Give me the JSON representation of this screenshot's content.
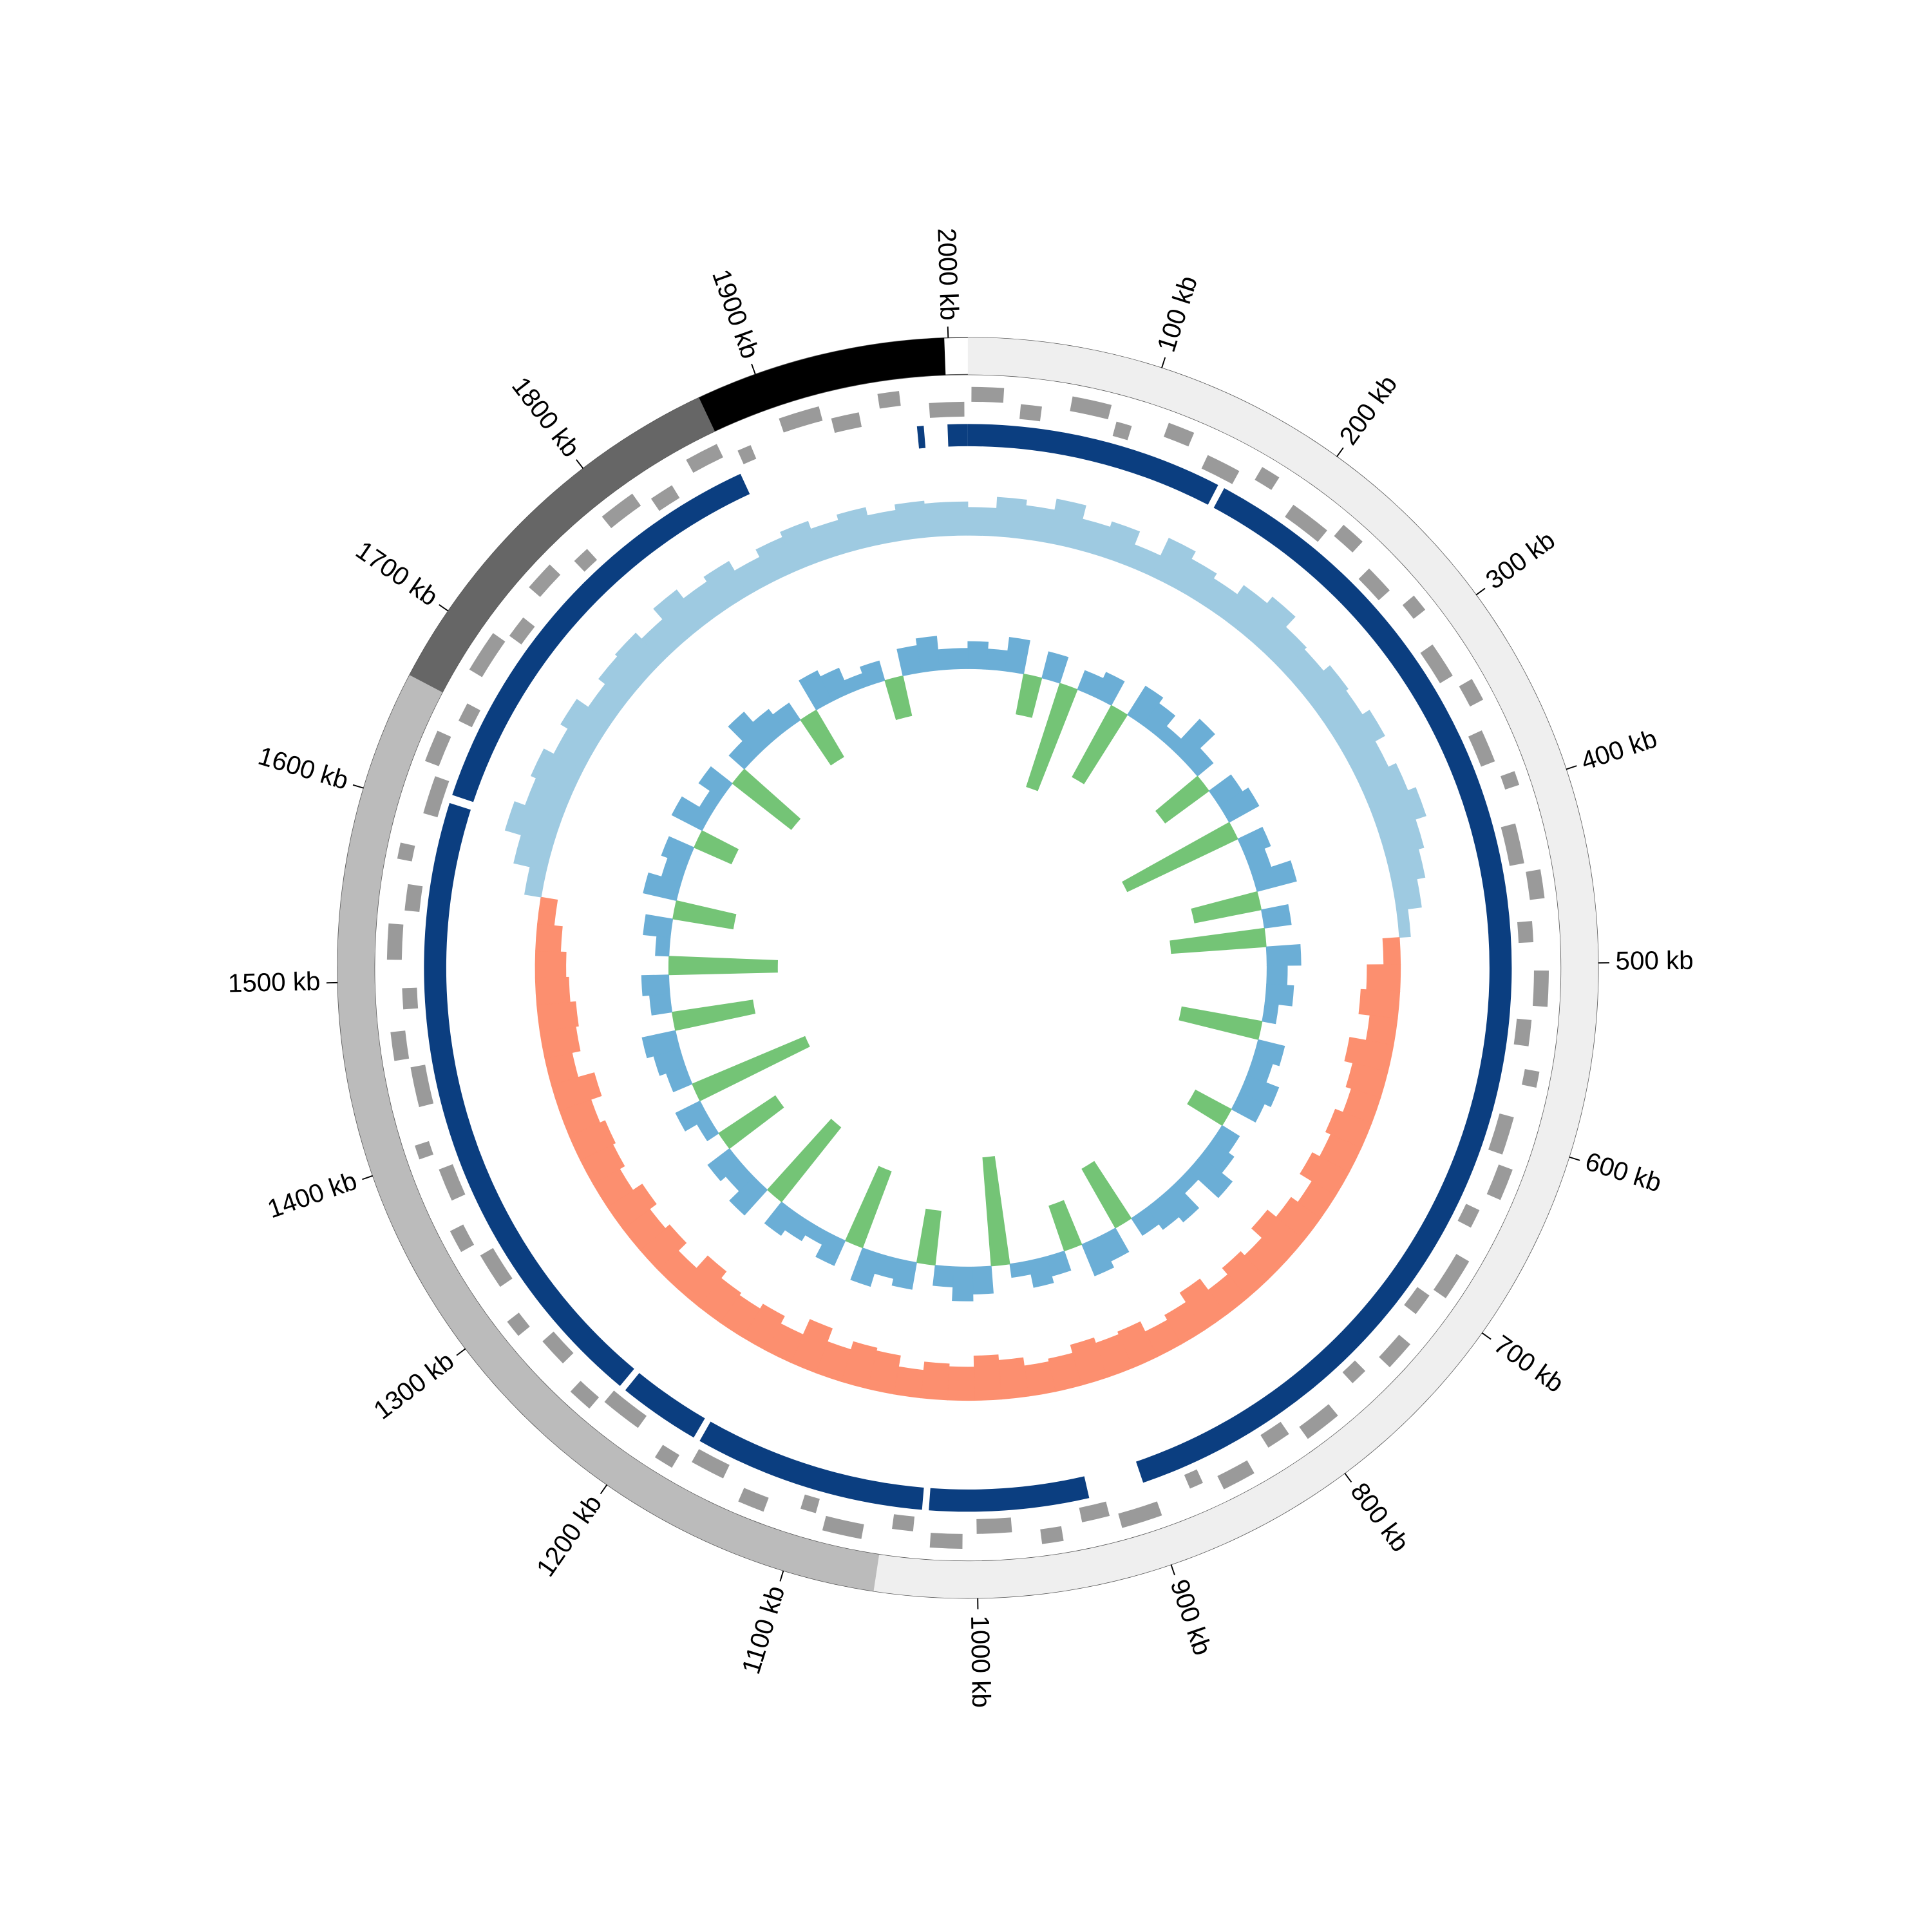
{
  "chart_data": {
    "type": "circular-genome",
    "xlim": [
      0,
      2010
    ],
    "xticks": [
      {
        "value": 100,
        "label": "100 kb"
      },
      {
        "value": 200,
        "label": "200 kb"
      },
      {
        "value": 300,
        "label": "300 kb"
      },
      {
        "value": 400,
        "label": "400 kb"
      },
      {
        "value": 500,
        "label": "500 kb"
      },
      {
        "value": 600,
        "label": "600 kb"
      },
      {
        "value": 700,
        "label": "700 kb"
      },
      {
        "value": 800,
        "label": "800 kb"
      },
      {
        "value": 900,
        "label": "900 kb"
      },
      {
        "value": 1000,
        "label": "1000 kb"
      },
      {
        "value": 1100,
        "label": "1100 kb"
      },
      {
        "value": 1200,
        "label": "1200 kb"
      },
      {
        "value": 1300,
        "label": "1300 kb"
      },
      {
        "value": 1400,
        "label": "1400 kb"
      },
      {
        "value": 1500,
        "label": "1500 kb"
      },
      {
        "value": 1600,
        "label": "1600 kb"
      },
      {
        "value": 1700,
        "label": "1700 kb"
      },
      {
        "value": 1800,
        "label": "1800 kb"
      },
      {
        "value": 1900,
        "label": "1900 kb"
      },
      {
        "value": 2000,
        "label": "2000 kb"
      }
    ],
    "segments": {
      "start": [
        0,
        1053,
        1662,
        1869
      ],
      "end": [
        1053,
        1662,
        1869,
        1998
      ],
      "color": [
        "#efefef",
        "#bbbbbb",
        "#666666",
        "#000000"
      ]
    },
    "genes": {
      "color": "#9a9a9a",
      "start": [
        2,
        30,
        58,
        85,
        113,
        140,
        170,
        196,
        225,
        252,
        280,
        308,
        336,
        364,
        392,
        420,
        448,
        476,
        504,
        532,
        560,
        588,
        616,
        644,
        672,
        700,
        728,
        756,
        784,
        812,
        840,
        868,
        896,
        924,
        952,
        980,
        1008,
        1036,
        1064,
        1092,
        1120,
        1148,
        1176,
        1204,
        1232,
        1260,
        1288,
        1316,
        1344,
        1372,
        1400,
        1428,
        1456,
        1484,
        1512,
        1540,
        1568,
        1596,
        1624,
        1652,
        1680,
        1708,
        1736,
        1764,
        1792,
        1820,
        1848,
        1876,
        1904,
        1932,
        1960,
        1988
      ],
      "end": [
        20,
        42,
        80,
        94,
        128,
        160,
        181,
        220,
        239,
        269,
        290,
        329,
        349,
        383,
        400,
        443,
        464,
        488,
        524,
        547,
        569,
        610,
        634,
        655,
        696,
        713,
        745,
        766,
        805,
        826,
        859,
        876,
        919,
        940,
        964,
        1000,
        1026,
        1048,
        1086,
        1101,
        1135,
        1168,
        1187,
        1228,
        1246,
        1277,
        1298,
        1337,
        1357,
        1391,
        1408,
        1451,
        1472,
        1496,
        1532,
        1555,
        1577,
        1618,
        1642,
        1663,
        1704,
        1721,
        1753,
        1774,
        1813,
        1834,
        1867,
        1884,
        1927,
        1948,
        1972,
        2008
      ],
      "strand": [
        1,
        -1,
        1,
        -1,
        1,
        -1,
        1,
        -1,
        1,
        -1,
        1,
        -1,
        1,
        -1,
        1,
        -1,
        1,
        -1,
        1,
        -1,
        1,
        -1,
        1,
        -1,
        1,
        -1,
        1,
        -1,
        1,
        -1,
        1,
        -1,
        1,
        -1,
        1,
        -1,
        1,
        -1,
        1,
        -1,
        1,
        -1,
        1,
        -1,
        1,
        -1,
        1,
        -1,
        1,
        -1,
        1,
        -1,
        1,
        -1,
        1,
        -1,
        1,
        -1,
        1,
        -1,
        1,
        -1,
        1,
        -1,
        1,
        -1,
        1,
        -1,
        1,
        -1,
        1,
        -1
      ]
    },
    "blocks": {
      "color": "#0b3e80",
      "start": [
        0,
        157,
        933,
        1032,
        1174,
        1227,
        1611,
        1980,
        1998
      ],
      "end": [
        153,
        900,
        1028,
        1170,
        1223,
        1606,
        1872,
        1984,
        2010
      ]
    },
    "skew": {
      "color_pos": "#9ecae1",
      "color_neg": "#fc8f6f",
      "ylim": [
        -1,
        1
      ],
      "x": [
        0,
        20,
        40,
        60,
        80,
        100,
        120,
        140,
        160,
        180,
        200,
        220,
        240,
        260,
        280,
        300,
        320,
        340,
        360,
        380,
        400,
        420,
        440,
        460,
        480,
        500,
        520,
        540,
        560,
        580,
        600,
        620,
        640,
        660,
        680,
        700,
        720,
        740,
        760,
        780,
        800,
        820,
        840,
        860,
        880,
        900,
        920,
        940,
        960,
        980,
        1000,
        1020,
        1040,
        1060,
        1080,
        1100,
        1120,
        1140,
        1160,
        1180,
        1200,
        1220,
        1240,
        1260,
        1280,
        1300,
        1320,
        1340,
        1360,
        1380,
        1400,
        1420,
        1440,
        1460,
        1480,
        1500,
        1520,
        1540,
        1560,
        1580,
        1600,
        1620,
        1640,
        1660,
        1680,
        1700,
        1720,
        1740,
        1760,
        1780,
        1800,
        1820,
        1840,
        1860,
        1880,
        1900,
        1920,
        1940,
        1960,
        1980
      ],
      "values": [
        0.5,
        0.7,
        0.6,
        0.8,
        0.55,
        0.65,
        0.4,
        0.75,
        0.6,
        0.5,
        0.7,
        0.85,
        0.6,
        0.55,
        0.7,
        0.65,
        0.8,
        0.6,
        0.75,
        0.9,
        0.7,
        0.6,
        0.45,
        0.2,
        -0.3,
        -0.6,
        -0.7,
        -0.5,
        -0.8,
        -0.65,
        -0.55,
        -0.7,
        -0.6,
        -0.75,
        -0.5,
        -0.65,
        -0.85,
        -0.6,
        -0.7,
        -0.55,
        -0.8,
        -0.6,
        -0.5,
        -0.7,
        -0.65,
        -0.75,
        -0.6,
        -0.55,
        -0.7,
        -0.8,
        -0.6,
        -0.65,
        -0.5,
        -0.7,
        -0.75,
        -0.6,
        -0.85,
        -0.55,
        -0.7,
        -0.6,
        -0.65,
        -0.8,
        -0.5,
        -0.7,
        -0.6,
        -0.75,
        -0.55,
        -0.65,
        -0.7,
        -0.6,
        -0.8,
        -0.5,
        -0.65,
        -0.7,
        -0.6,
        -0.55,
        -0.45,
        -0.3,
        0.3,
        0.6,
        0.9,
        0.7,
        0.8,
        0.6,
        0.75,
        0.5,
        0.65,
        0.7,
        0.55,
        0.8,
        0.6,
        0.7,
        0.5,
        0.65,
        0.75,
        0.6,
        0.7,
        0.55,
        0.65,
        0.6
      ]
    },
    "content": {
      "color_pos": "#6baed6",
      "color_neg": "#74c476",
      "ylim": [
        -1,
        1
      ],
      "x": [
        0,
        20,
        40,
        60,
        80,
        100,
        120,
        140,
        160,
        180,
        200,
        220,
        240,
        260,
        280,
        300,
        320,
        340,
        360,
        380,
        400,
        420,
        440,
        460,
        480,
        500,
        520,
        540,
        560,
        580,
        600,
        620,
        640,
        660,
        680,
        700,
        720,
        740,
        760,
        780,
        800,
        820,
        840,
        860,
        880,
        900,
        920,
        940,
        960,
        980,
        1000,
        1020,
        1040,
        1060,
        1080,
        1100,
        1120,
        1140,
        1160,
        1180,
        1200,
        1220,
        1240,
        1260,
        1280,
        1300,
        1320,
        1340,
        1360,
        1380,
        1400,
        1420,
        1440,
        1460,
        1480,
        1500,
        1520,
        1540,
        1560,
        1580,
        1600,
        1620,
        1640,
        1660,
        1680,
        1700,
        1720,
        1740,
        1760,
        1780,
        1800,
        1820,
        1840,
        1860,
        1880,
        1900,
        1920,
        1940,
        1960,
        1980
      ],
      "values": [
        0.2,
        0.15,
        0.25,
        -0.3,
        0.2,
        -0.8,
        0.15,
        0.2,
        -0.6,
        0.25,
        0.2,
        0.1,
        0.3,
        0.15,
        -0.4,
        0.2,
        0.25,
        -0.9,
        0.2,
        0.15,
        0.3,
        -0.5,
        0.2,
        -0.7,
        0.25,
        0.15,
        0.2,
        0.1,
        -0.6,
        0.2,
        0.15,
        0.25,
        0.2,
        -0.3,
        0.15,
        0.2,
        0.3,
        0.1,
        0.25,
        0.2,
        0.15,
        -0.5,
        0.2,
        0.25,
        -0.35,
        0.15,
        0.2,
        0.1,
        -0.8,
        0.2,
        0.25,
        0.15,
        -0.4,
        0.2,
        0.15,
        0.25,
        -0.6,
        0.2,
        0.1,
        0.15,
        0.2,
        -0.7,
        0.25,
        0.15,
        0.2,
        -0.5,
        0.1,
        0.2,
        -0.9,
        0.15,
        0.2,
        0.25,
        -0.6,
        0.15,
        0.2,
        -0.8,
        0.1,
        0.2,
        -0.45,
        0.25,
        0.15,
        0.2,
        -0.3,
        0.25,
        0.1,
        0.2,
        -0.55,
        0.15,
        0.3,
        0.2,
        0.15,
        -0.4,
        0.25,
        0.2,
        0.1,
        0.15,
        -0.3,
        0.2,
        0.25,
        0.15
      ]
    }
  }
}
